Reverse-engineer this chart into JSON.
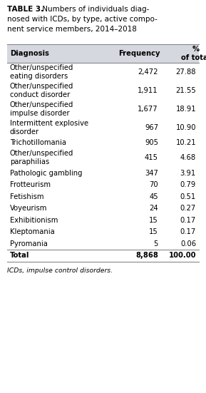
{
  "title_bold": "TABLE 3.",
  "title_line1": " Numbers of individuals diag-",
  "title_line2": "nosed with ICDs, by type, active compo-",
  "title_line3": "nent service members, 2014–2018",
  "header": [
    "Diagnosis",
    "Frequency",
    "%\nof total"
  ],
  "rows": [
    [
      "Other/unspecified\neating disorders",
      "2,472",
      "27.88"
    ],
    [
      "Other/unspecified\nconduct disorder",
      "1,911",
      "21.55"
    ],
    [
      "Other/unspecified\nimpulse disorder",
      "1,677",
      "18.91"
    ],
    [
      "Intermittent explosive\ndisorder",
      "967",
      "10.90"
    ],
    [
      "Trichotillomania",
      "905",
      "10.21"
    ],
    [
      "Other/unspecified\nparaphilias",
      "415",
      "4.68"
    ],
    [
      "Pathologic gambling",
      "347",
      "3.91"
    ],
    [
      "Frotteurism",
      "70",
      "0.79"
    ],
    [
      "Fetishism",
      "45",
      "0.51"
    ],
    [
      "Voyeurism",
      "24",
      "0.27"
    ],
    [
      "Exhibitionism",
      "15",
      "0.17"
    ],
    [
      "Kleptomania",
      "15",
      "0.17"
    ],
    [
      "Pyromania",
      "5",
      "0.06"
    ],
    [
      "Total",
      "8,868",
      "100.00"
    ]
  ],
  "footnote": "ICDs, impulse control disorders.",
  "header_bg": "#d6d8e0",
  "bg_color": "#ffffff",
  "font_size": 7.2,
  "line_color": "#888888"
}
